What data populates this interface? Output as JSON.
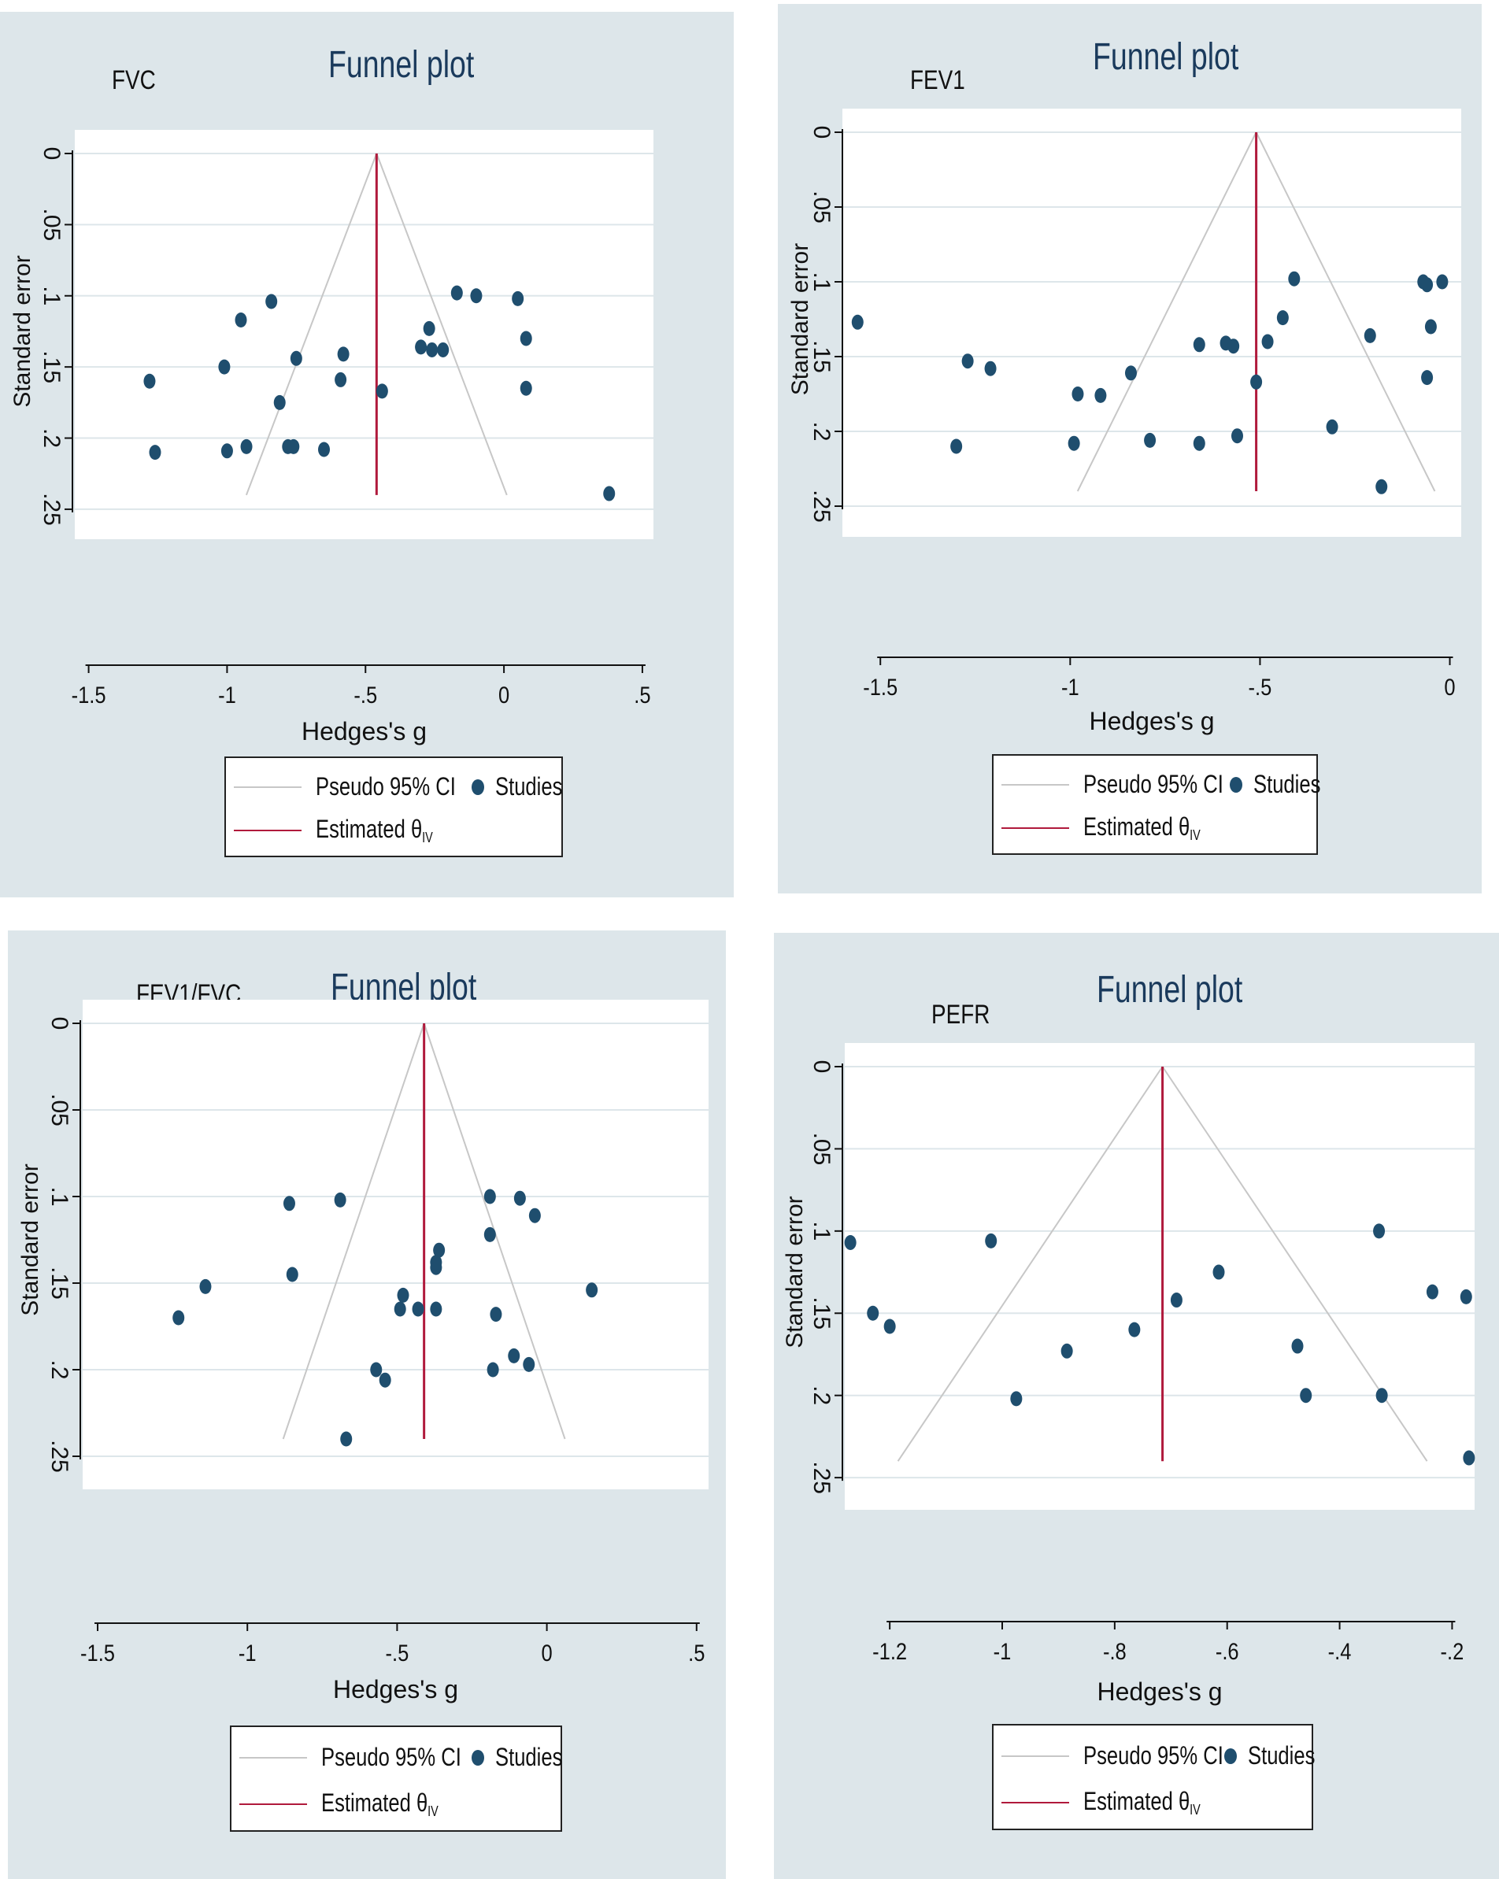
{
  "colors": {
    "panel_bg": "#dde6ea",
    "plot_bg": "#ffffff",
    "grid": "#dde6ea",
    "ci_line": "#c7c7c7",
    "estimate_line": "#b01a3c",
    "dot": "#1f4e6e",
    "title": "#1a3a5c"
  },
  "legend": {
    "ci_label": "Pseudo 95% CI",
    "studies_label": "Studies",
    "estimate_label": "Estimated θ",
    "estimate_sub": "IV"
  },
  "chart_data": [
    {
      "type": "scatter",
      "label": "FVC",
      "title": "Funnel plot",
      "xlabel": "Hedges's g",
      "ylabel": "Standard error",
      "xlim": [
        -1.55,
        0.54
      ],
      "ylim": [
        0,
        0.26
      ],
      "y_inverted": true,
      "xticks": [
        -1.5,
        -1,
        -0.5,
        0,
        0.5
      ],
      "xtick_labels": [
        "-1.5",
        "-1",
        "-.5",
        "0",
        ".5"
      ],
      "yticks": [
        0,
        0.05,
        0.1,
        0.15,
        0.2,
        0.25
      ],
      "ytick_labels": [
        "0",
        ".05",
        ".1",
        ".15",
        ".2",
        ".25"
      ],
      "estimate": -0.46,
      "se_max": 0.24,
      "points": [
        {
          "x": -1.28,
          "y": 0.16
        },
        {
          "x": -1.26,
          "y": 0.21
        },
        {
          "x": -1.01,
          "y": 0.15
        },
        {
          "x": -1.0,
          "y": 0.209
        },
        {
          "x": -0.95,
          "y": 0.117
        },
        {
          "x": -0.93,
          "y": 0.206
        },
        {
          "x": -0.84,
          "y": 0.104
        },
        {
          "x": -0.81,
          "y": 0.175
        },
        {
          "x": -0.78,
          "y": 0.206
        },
        {
          "x": -0.75,
          "y": 0.144
        },
        {
          "x": -0.76,
          "y": 0.206
        },
        {
          "x": -0.65,
          "y": 0.208
        },
        {
          "x": -0.59,
          "y": 0.159
        },
        {
          "x": -0.58,
          "y": 0.141
        },
        {
          "x": -0.44,
          "y": 0.167
        },
        {
          "x": -0.3,
          "y": 0.136
        },
        {
          "x": -0.27,
          "y": 0.123
        },
        {
          "x": -0.26,
          "y": 0.138
        },
        {
          "x": -0.22,
          "y": 0.138
        },
        {
          "x": -0.17,
          "y": 0.098
        },
        {
          "x": -0.1,
          "y": 0.1
        },
        {
          "x": 0.05,
          "y": 0.102
        },
        {
          "x": 0.08,
          "y": 0.13
        },
        {
          "x": 0.08,
          "y": 0.165
        },
        {
          "x": 0.38,
          "y": 0.239
        }
      ]
    },
    {
      "type": "scatter",
      "label": "FEV1",
      "title": "Funnel plot",
      "xlabel": "Hedges's g",
      "ylabel": "Standard error",
      "xlim": [
        -1.6,
        0.03
      ],
      "ylim": [
        0,
        0.26
      ],
      "y_inverted": true,
      "xticks": [
        -1.5,
        -1,
        -0.5,
        0
      ],
      "xtick_labels": [
        "-1.5",
        "-1",
        "-.5",
        "0"
      ],
      "yticks": [
        0,
        0.05,
        0.1,
        0.15,
        0.2,
        0.25
      ],
      "ytick_labels": [
        "0",
        ".05",
        ".1",
        ".15",
        ".2",
        ".25"
      ],
      "estimate": -0.51,
      "se_max": 0.24,
      "points": [
        {
          "x": -1.56,
          "y": 0.127
        },
        {
          "x": -1.3,
          "y": 0.21
        },
        {
          "x": -1.27,
          "y": 0.153
        },
        {
          "x": -1.21,
          "y": 0.158
        },
        {
          "x": -0.99,
          "y": 0.208
        },
        {
          "x": -0.98,
          "y": 0.175
        },
        {
          "x": -0.92,
          "y": 0.176
        },
        {
          "x": -0.84,
          "y": 0.161
        },
        {
          "x": -0.79,
          "y": 0.206
        },
        {
          "x": -0.66,
          "y": 0.142
        },
        {
          "x": -0.66,
          "y": 0.208
        },
        {
          "x": -0.59,
          "y": 0.141
        },
        {
          "x": -0.57,
          "y": 0.143
        },
        {
          "x": -0.56,
          "y": 0.203
        },
        {
          "x": -0.51,
          "y": 0.167
        },
        {
          "x": -0.48,
          "y": 0.14
        },
        {
          "x": -0.44,
          "y": 0.124
        },
        {
          "x": -0.41,
          "y": 0.098
        },
        {
          "x": -0.31,
          "y": 0.197
        },
        {
          "x": -0.21,
          "y": 0.136
        },
        {
          "x": -0.18,
          "y": 0.237
        },
        {
          "x": -0.07,
          "y": 0.1
        },
        {
          "x": -0.06,
          "y": 0.102
        },
        {
          "x": -0.06,
          "y": 0.164
        },
        {
          "x": -0.05,
          "y": 0.13
        },
        {
          "x": -0.02,
          "y": 0.1
        }
      ]
    },
    {
      "type": "scatter",
      "label": "FEV1/FVC",
      "title": "Funnel plot",
      "xlabel": "Hedges's g",
      "ylabel": "Standard error",
      "xlim": [
        -1.55,
        0.54
      ],
      "ylim": [
        0,
        0.26
      ],
      "y_inverted": true,
      "xticks": [
        -1.5,
        -1,
        -0.5,
        0,
        0.5
      ],
      "xtick_labels": [
        "-1.5",
        "-1",
        "-.5",
        "0",
        ".5"
      ],
      "yticks": [
        0,
        0.05,
        0.1,
        0.15,
        0.2,
        0.25
      ],
      "ytick_labels": [
        "0",
        ".05",
        ".1",
        ".15",
        ".2",
        ".25"
      ],
      "estimate": -0.41,
      "se_max": 0.24,
      "points": [
        {
          "x": -1.23,
          "y": 0.17
        },
        {
          "x": -1.14,
          "y": 0.152
        },
        {
          "x": -0.86,
          "y": 0.104
        },
        {
          "x": -0.85,
          "y": 0.145
        },
        {
          "x": -0.69,
          "y": 0.102
        },
        {
          "x": -0.67,
          "y": 0.24
        },
        {
          "x": -0.57,
          "y": 0.2
        },
        {
          "x": -0.54,
          "y": 0.206
        },
        {
          "x": -0.49,
          "y": 0.165
        },
        {
          "x": -0.48,
          "y": 0.157
        },
        {
          "x": -0.43,
          "y": 0.165
        },
        {
          "x": -0.37,
          "y": 0.141
        },
        {
          "x": -0.37,
          "y": 0.138
        },
        {
          "x": -0.36,
          "y": 0.131
        },
        {
          "x": -0.37,
          "y": 0.165
        },
        {
          "x": -0.19,
          "y": 0.1
        },
        {
          "x": -0.19,
          "y": 0.122
        },
        {
          "x": -0.18,
          "y": 0.2
        },
        {
          "x": -0.17,
          "y": 0.168
        },
        {
          "x": -0.11,
          "y": 0.192
        },
        {
          "x": -0.09,
          "y": 0.101
        },
        {
          "x": -0.06,
          "y": 0.197
        },
        {
          "x": -0.04,
          "y": 0.111
        },
        {
          "x": 0.15,
          "y": 0.154
        }
      ]
    },
    {
      "type": "scatter",
      "label": "PEFR",
      "title": "Funnel plot",
      "xlabel": "Hedges's g",
      "ylabel": "Standard error",
      "xlim": [
        -1.28,
        -0.16
      ],
      "ylim": [
        0,
        0.26
      ],
      "y_inverted": true,
      "xticks": [
        -1.2,
        -1,
        -0.8,
        -0.6,
        -0.4,
        -0.2
      ],
      "xtick_labels": [
        "-1.2",
        "-1",
        "-.8",
        "-.6",
        "-.4",
        "-.2"
      ],
      "yticks": [
        0,
        0.05,
        0.1,
        0.15,
        0.2,
        0.25
      ],
      "ytick_labels": [
        "0",
        ".05",
        ".1",
        ".15",
        ".2",
        ".25"
      ],
      "estimate": -0.715,
      "se_max": 0.24,
      "points": [
        {
          "x": -1.27,
          "y": 0.107
        },
        {
          "x": -1.23,
          "y": 0.15
        },
        {
          "x": -1.2,
          "y": 0.158
        },
        {
          "x": -1.02,
          "y": 0.106
        },
        {
          "x": -0.975,
          "y": 0.202
        },
        {
          "x": -0.885,
          "y": 0.173
        },
        {
          "x": -0.765,
          "y": 0.16
        },
        {
          "x": -0.69,
          "y": 0.142
        },
        {
          "x": -0.615,
          "y": 0.125
        },
        {
          "x": -0.475,
          "y": 0.17
        },
        {
          "x": -0.46,
          "y": 0.2
        },
        {
          "x": -0.33,
          "y": 0.1
        },
        {
          "x": -0.325,
          "y": 0.2
        },
        {
          "x": -0.235,
          "y": 0.137
        },
        {
          "x": -0.175,
          "y": 0.14
        },
        {
          "x": -0.17,
          "y": 0.238
        }
      ]
    }
  ]
}
